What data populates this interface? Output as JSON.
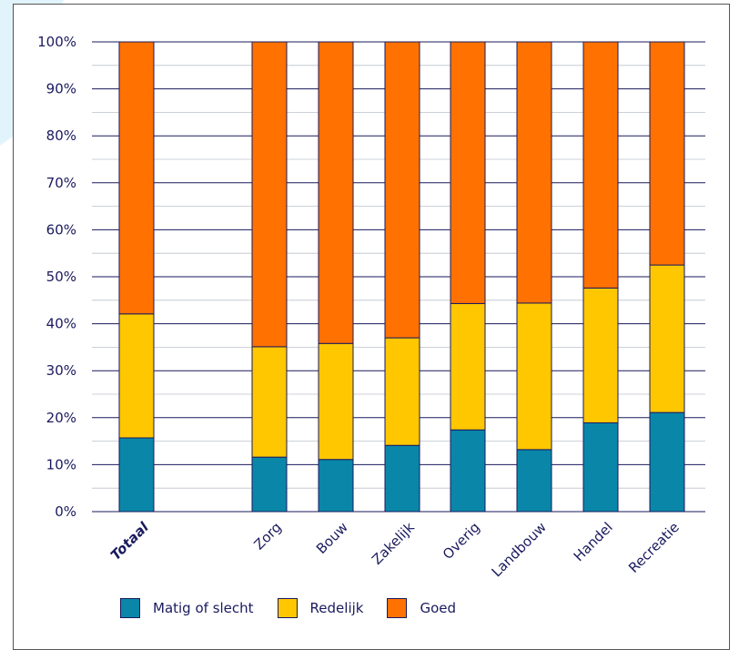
{
  "chart_data": {
    "type": "bar",
    "stacked": true,
    "categories": [
      "Totaal",
      "Zorg",
      "Bouw",
      "Zakelijk",
      "Overig",
      "Landbouw",
      "Handel",
      "Recreatie"
    ],
    "emphasized_category": "Totaal",
    "series": [
      {
        "name": "Matig of slecht",
        "color": "#0a87a8",
        "values": [
          15.7,
          11.6,
          11.1,
          14.1,
          17.4,
          13.2,
          18.9,
          21.1
        ]
      },
      {
        "name": "Redelijk",
        "color": "#ffc700",
        "values": [
          26.4,
          23.5,
          24.7,
          22.9,
          26.9,
          31.2,
          28.7,
          31.4
        ]
      },
      {
        "name": "Goed",
        "color": "#ff7100",
        "values": [
          57.9,
          64.9,
          64.2,
          63.0,
          55.7,
          55.6,
          52.4,
          47.5
        ]
      }
    ],
    "yticks": [
      "0%",
      "10%",
      "20%",
      "30%",
      "40%",
      "50%",
      "60%",
      "70%",
      "80%",
      "90%",
      "100%"
    ],
    "ylim": [
      0,
      100
    ],
    "title": "",
    "xlabel": "",
    "ylabel": "",
    "grid": true,
    "legend_position": "bottom"
  }
}
